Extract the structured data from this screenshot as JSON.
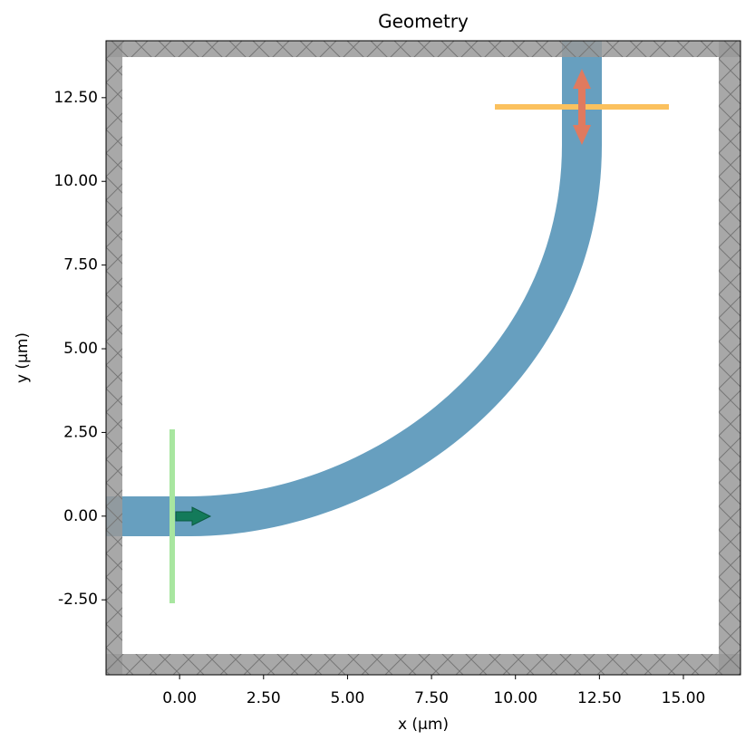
{
  "chart_data": {
    "type": "geometry",
    "title": "Geometry",
    "xlabel": "x (µm)",
    "ylabel": "y (µm)",
    "xlim": [
      -2.19,
      16.7
    ],
    "ylim": [
      -4.74,
      14.2
    ],
    "xticks": [
      {
        "value": 0,
        "label": "0.00"
      },
      {
        "value": 2.5,
        "label": "2.50"
      },
      {
        "value": 5,
        "label": "5.00"
      },
      {
        "value": 7.5,
        "label": "7.50"
      },
      {
        "value": 10,
        "label": "10.00"
      },
      {
        "value": 12.5,
        "label": "12.50"
      },
      {
        "value": 15,
        "label": "15.00"
      }
    ],
    "yticks": [
      {
        "value": -2.5,
        "label": "-2.50"
      },
      {
        "value": 0,
        "label": "0.00"
      },
      {
        "value": 2.5,
        "label": "2.50"
      },
      {
        "value": 5,
        "label": "5.00"
      },
      {
        "value": 7.5,
        "label": "7.50"
      },
      {
        "value": 10,
        "label": "10.00"
      },
      {
        "value": 12.5,
        "label": "12.50"
      }
    ]
  }
}
